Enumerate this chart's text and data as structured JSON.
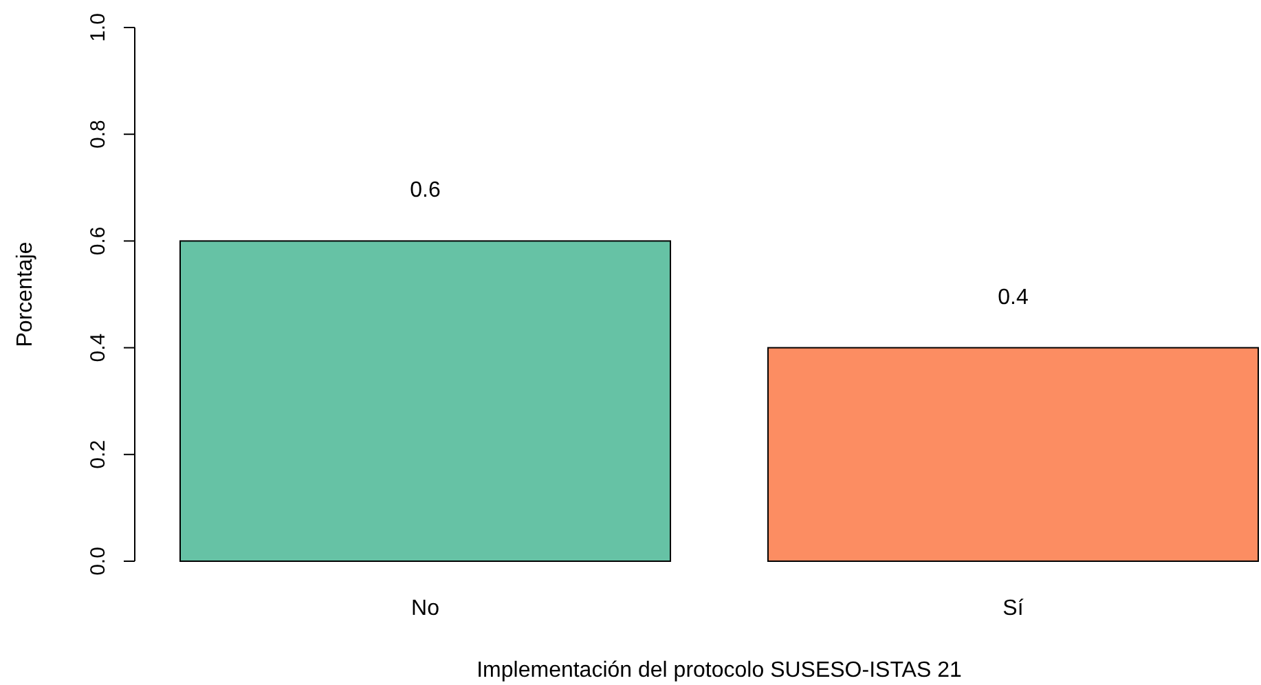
{
  "chart_data": {
    "type": "bar",
    "xlabel": "Implementación del protocolo SUSESO-ISTAS 21",
    "ylabel": "Porcentaje",
    "categories": [
      "No",
      "Sí"
    ],
    "values": [
      0.6,
      0.4
    ],
    "colors": [
      "#66c2a5",
      "#fc8d62"
    ],
    "ylim": [
      0,
      1
    ],
    "yticks": [
      {
        "value": 0,
        "label": "0.0"
      },
      {
        "value": 0.2,
        "label": "0.2"
      },
      {
        "value": 0.4,
        "label": "0.4"
      },
      {
        "value": 0.6,
        "label": "0.6"
      },
      {
        "value": 0.8,
        "label": "0.8"
      },
      {
        "value": 1,
        "label": "1.0"
      }
    ],
    "data_labels": true
  }
}
